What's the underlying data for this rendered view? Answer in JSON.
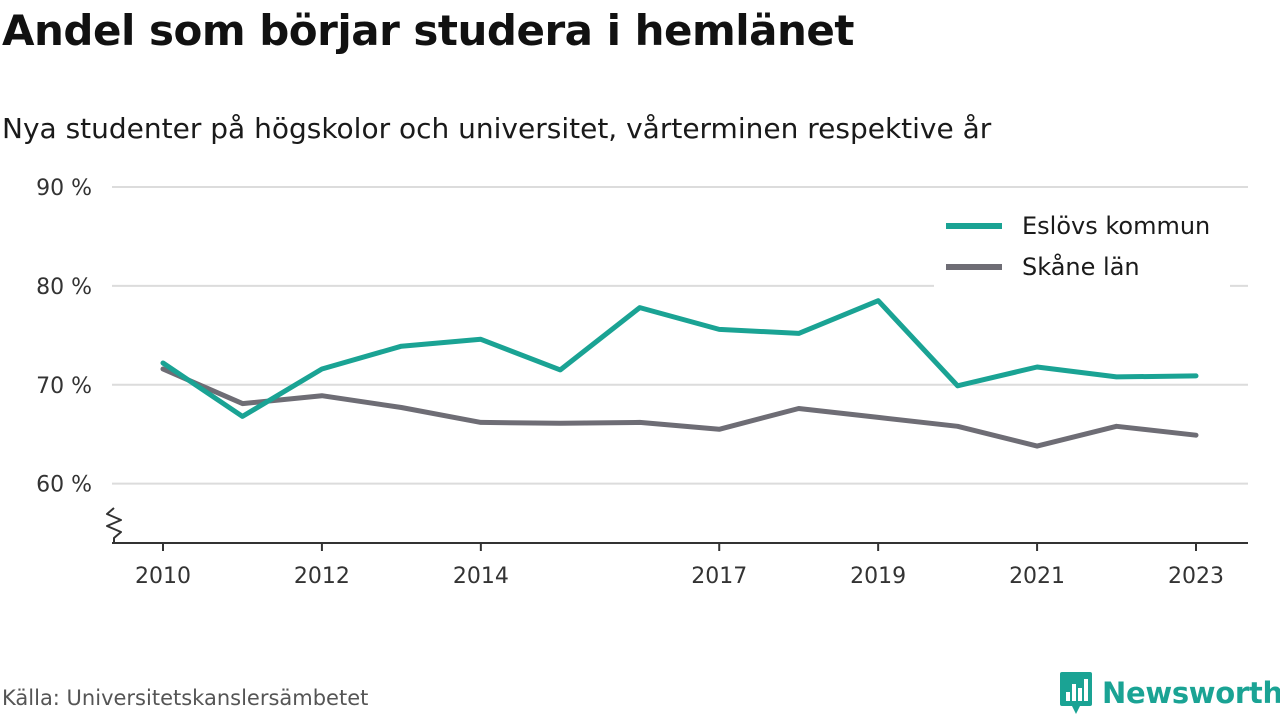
{
  "header": {
    "title": "Andel som börjar studera i hemlänet",
    "subtitle": "Nya studenter på högskolor och universitet, vårterminen respektive år"
  },
  "footer": {
    "source": "Källa: Universitetskanslersämbetet",
    "brand": "Newsworthy",
    "brand_color": "#1aa394"
  },
  "chart_data": {
    "type": "line",
    "title": "Andel som börjar studera i hemlänet",
    "subtitle": "Nya studenter på högskolor och universitet, vårterminen respektive år",
    "xlabel": "",
    "ylabel": "",
    "x": [
      2010,
      2011,
      2012,
      2013,
      2014,
      2015,
      2016,
      2017,
      2018,
      2019,
      2020,
      2021,
      2022,
      2023
    ],
    "x_ticks": [
      "2010",
      "2012",
      "2014",
      "2017",
      "2019",
      "2021",
      "2023"
    ],
    "y_ticks": [
      "60 %",
      "70 %",
      "80 %",
      "90 %"
    ],
    "y_tick_values": [
      60,
      70,
      80,
      90
    ],
    "ylim": [
      54,
      90
    ],
    "y_axis_break": true,
    "grid": true,
    "legend_position": "top-right",
    "series": [
      {
        "name": "Eslövs kommun",
        "color": "#1aa394",
        "values": [
          72.2,
          66.8,
          71.6,
          73.9,
          74.6,
          71.5,
          77.8,
          75.6,
          75.2,
          78.5,
          69.9,
          71.8,
          70.8,
          70.9
        ]
      },
      {
        "name": "Skåne län",
        "color": "#6e6d75",
        "values": [
          71.6,
          68.1,
          68.9,
          67.7,
          66.2,
          66.1,
          66.2,
          65.5,
          67.6,
          66.7,
          65.8,
          63.8,
          65.8,
          64.9
        ]
      }
    ]
  }
}
